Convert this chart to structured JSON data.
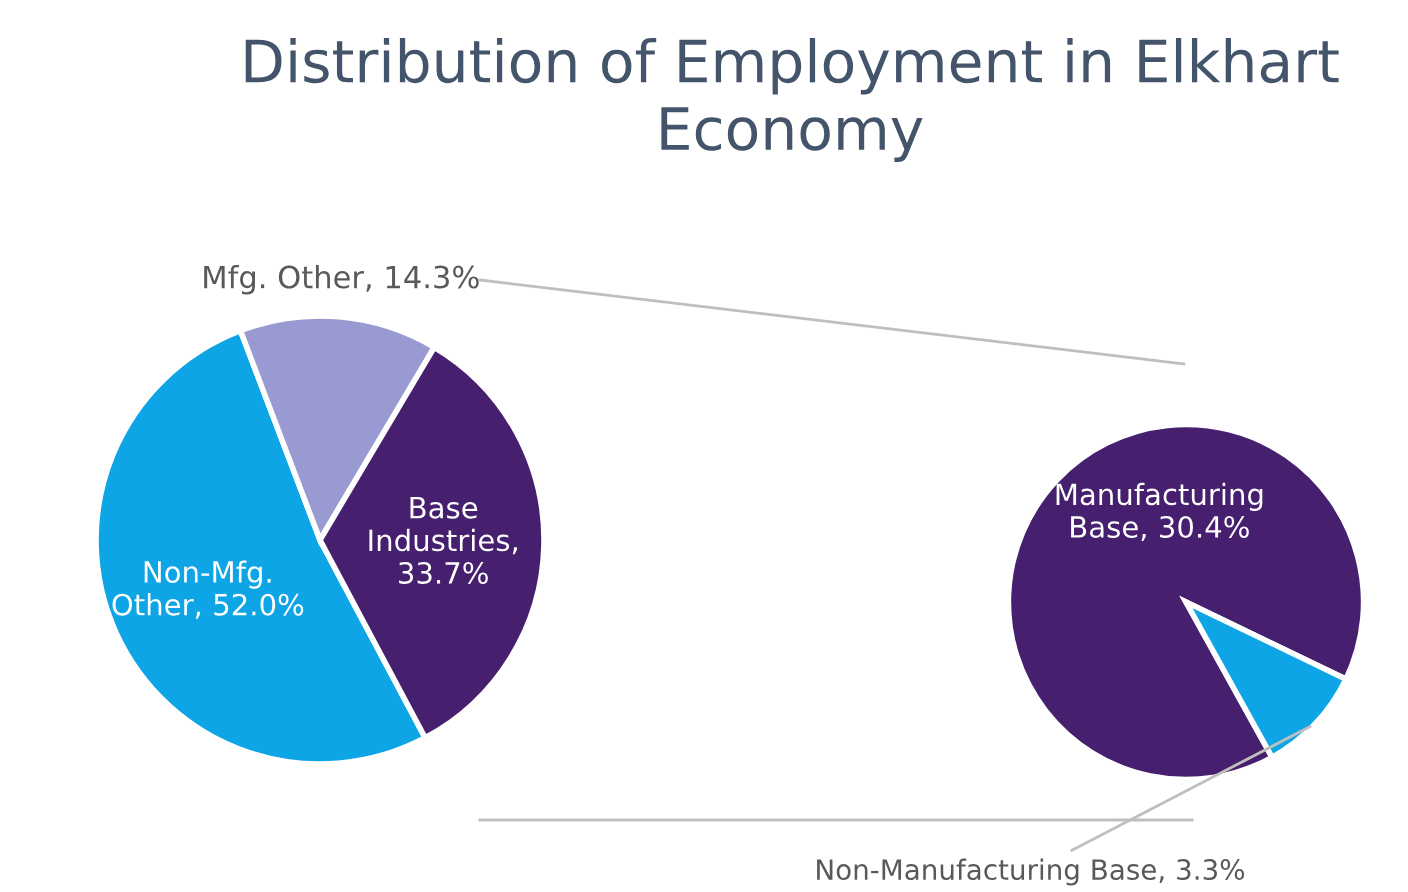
{
  "chart_data": [
    {
      "type": "pie",
      "title": "Distribution of Employment in Elkhart Economy",
      "categories": [
        "Non-Mfg. Other, 52.0%",
        "Mfg. Other, 14.3%",
        "Base Industries, 33.7%"
      ],
      "values": [
        52.0,
        14.3,
        33.7
      ],
      "colors": [
        "#0ea5e6",
        "#9a9ad2",
        "#46206e"
      ]
    },
    {
      "type": "pie",
      "categories": [
        "Manufacturing Base, 30.4%",
        "Non-Manufacturing Base, 3.3%"
      ],
      "values": [
        30.4,
        3.3
      ],
      "colors": [
        "#46206e",
        "#0ea5e6"
      ]
    }
  ]
}
